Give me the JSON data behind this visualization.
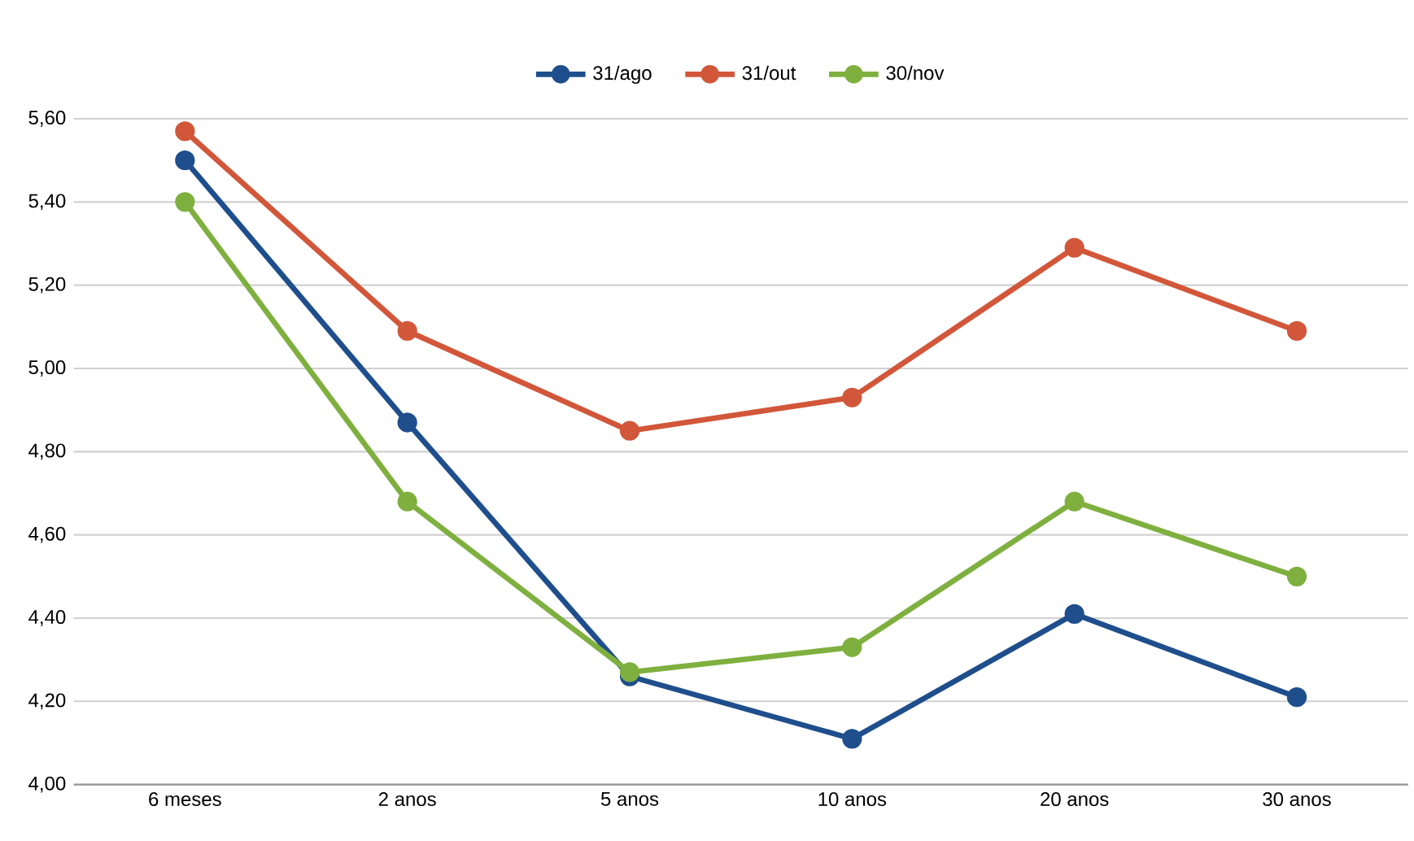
{
  "chart_data": {
    "type": "line",
    "categories": [
      "6 meses",
      "2 anos",
      "5 anos",
      "10 anos",
      "20 anos",
      "30 anos"
    ],
    "series": [
      {
        "name": "31/ago",
        "color": "#1f4e8c",
        "values": [
          5.5,
          4.87,
          4.26,
          4.11,
          4.41,
          4.21
        ]
      },
      {
        "name": "31/out",
        "color": "#d2573a",
        "values": [
          5.57,
          5.09,
          4.85,
          4.93,
          5.29,
          5.09
        ]
      },
      {
        "name": "30/nov",
        "color": "#7fb03f",
        "values": [
          5.4,
          4.68,
          4.27,
          4.33,
          4.68,
          4.5
        ]
      }
    ],
    "ylim": [
      4.0,
      5.6
    ],
    "yticks": [
      {
        "value": 4.0,
        "label": "4,00"
      },
      {
        "value": 4.2,
        "label": "4,20"
      },
      {
        "value": 4.4,
        "label": "4,40"
      },
      {
        "value": 4.6,
        "label": "4,60"
      },
      {
        "value": 4.8,
        "label": "4,80"
      },
      {
        "value": 5.0,
        "label": "5,00"
      },
      {
        "value": 5.2,
        "label": "5,20"
      },
      {
        "value": 5.4,
        "label": "5,40"
      },
      {
        "value": 5.6,
        "label": "5,60"
      }
    ],
    "grid": "y",
    "legend": "top",
    "marker": "circle",
    "line_style": "solid"
  }
}
